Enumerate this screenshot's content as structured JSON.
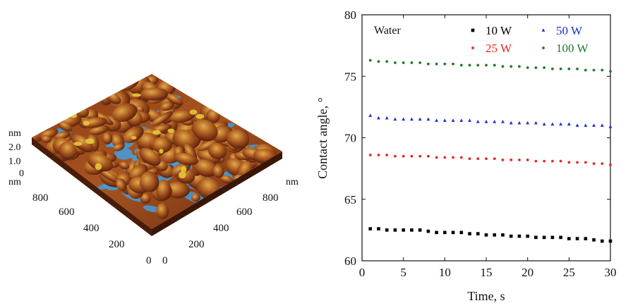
{
  "afm_panel": {
    "z_unit": "nm",
    "z_ticks": [
      "2.0",
      "1.0",
      "0"
    ],
    "x_unit": "nm",
    "y_unit": "nm",
    "left_axis_ticks": [
      "800",
      "600",
      "400",
      "200",
      "0"
    ],
    "right_axis_ticks": [
      "800",
      "600",
      "400",
      "200",
      "0"
    ],
    "colors": {
      "surface_dark": "#6a2a10",
      "surface_mid": "#a85420",
      "surface_light": "#d7a040",
      "valley": "#3f9fe0",
      "peak": "#e8c838"
    }
  },
  "chart_data": {
    "type": "scatter",
    "title": "",
    "xlabel": "Time, s",
    "ylabel": "Contact angle, °",
    "xlim": [
      0,
      30
    ],
    "ylim": [
      60,
      80
    ],
    "xticks": [
      "0",
      "5",
      "10",
      "15",
      "20",
      "25",
      "30"
    ],
    "yticks": [
      "60",
      "65",
      "70",
      "75",
      "80"
    ],
    "annotation": "Water",
    "legend_position": "top-right",
    "x": [
      1,
      2,
      3,
      4,
      5,
      6,
      7,
      8,
      9,
      10,
      11,
      12,
      13,
      14,
      15,
      16,
      17,
      18,
      19,
      20,
      21,
      22,
      23,
      24,
      25,
      26,
      27,
      28,
      29,
      30
    ],
    "series": [
      {
        "name": "10 W",
        "color": "#000000",
        "marker": "square",
        "values": [
          62.6,
          62.6,
          62.5,
          62.5,
          62.5,
          62.5,
          62.5,
          62.4,
          62.3,
          62.3,
          62.3,
          62.3,
          62.2,
          62.2,
          62.1,
          62.1,
          62.1,
          62.0,
          62.0,
          62.0,
          61.9,
          61.9,
          61.9,
          61.9,
          61.8,
          61.8,
          61.8,
          61.7,
          61.6,
          61.6
        ]
      },
      {
        "name": "25 W",
        "color": "#e8281e",
        "marker": "dot",
        "values": [
          68.6,
          68.6,
          68.6,
          68.5,
          68.5,
          68.5,
          68.5,
          68.5,
          68.4,
          68.4,
          68.4,
          68.4,
          68.3,
          68.3,
          68.3,
          68.3,
          68.2,
          68.2,
          68.2,
          68.2,
          68.1,
          68.1,
          68.1,
          68.1,
          68.0,
          68.0,
          68.0,
          67.9,
          67.9,
          67.8
        ]
      },
      {
        "name": "50 W",
        "color": "#1c2fcf",
        "marker": "triangle",
        "values": [
          71.8,
          71.6,
          71.6,
          71.5,
          71.5,
          71.5,
          71.5,
          71.5,
          71.4,
          71.4,
          71.4,
          71.4,
          71.4,
          71.3,
          71.3,
          71.3,
          71.3,
          71.2,
          71.2,
          71.2,
          71.2,
          71.1,
          71.1,
          71.1,
          71.1,
          71.0,
          71.0,
          71.0,
          71.0,
          70.9
        ]
      },
      {
        "name": "100 W",
        "color": "#1e7a2e",
        "marker": "dot",
        "values": [
          76.3,
          76.2,
          76.2,
          76.1,
          76.1,
          76.1,
          76.1,
          76.0,
          76.0,
          76.0,
          76.0,
          75.9,
          75.9,
          75.9,
          75.9,
          75.9,
          75.8,
          75.8,
          75.8,
          75.7,
          75.7,
          75.7,
          75.6,
          75.6,
          75.6,
          75.6,
          75.5,
          75.5,
          75.5,
          75.4
        ]
      }
    ]
  }
}
